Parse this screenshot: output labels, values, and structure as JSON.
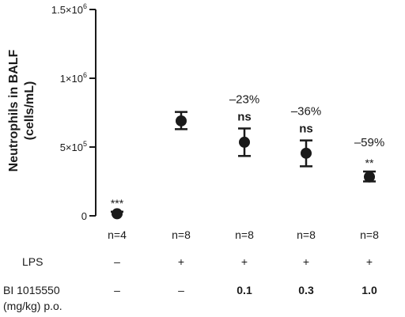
{
  "chart_data": {
    "type": "scatter",
    "ylabel": "Neutrophils in BALF",
    "ylabel_units": "(cells/mL)",
    "ylim": [
      0,
      1500000
    ],
    "yticks": [
      {
        "value": 0,
        "base": "0",
        "exp": ""
      },
      {
        "value": 500000,
        "base": "5×10",
        "exp": "5"
      },
      {
        "value": 1000000,
        "base": "1×10",
        "exp": "6"
      },
      {
        "value": 1500000,
        "base": "1.5×10",
        "exp": "6"
      }
    ],
    "groups": [
      {
        "n_label": "n=4",
        "mean": 15000,
        "err_low": 0,
        "err_high": 30000,
        "percent": "",
        "significance": "***",
        "lps": "–",
        "dose": "–"
      },
      {
        "n_label": "n=8",
        "mean": 690000,
        "err_low": 630000,
        "err_high": 755000,
        "percent": "",
        "significance": "",
        "lps": "+",
        "dose": "–"
      },
      {
        "n_label": "n=8",
        "mean": 535000,
        "err_low": 435000,
        "err_high": 635000,
        "percent": "–23%",
        "significance": "ns",
        "lps": "+",
        "dose": "0.1"
      },
      {
        "n_label": "n=8",
        "mean": 455000,
        "err_low": 360000,
        "err_high": 548000,
        "percent": "–36%",
        "significance": "ns",
        "lps": "+",
        "dose": "0.3"
      },
      {
        "n_label": "n=8",
        "mean": 283000,
        "err_low": 250000,
        "err_high": 322000,
        "percent": "–59%",
        "significance": "**",
        "lps": "+",
        "dose": "1.0"
      }
    ],
    "rows": {
      "lps_label": "LPS",
      "dose_label_line1": "BI 1015550",
      "dose_label_line2": "(mg/kg) p.o."
    },
    "grid": false
  }
}
